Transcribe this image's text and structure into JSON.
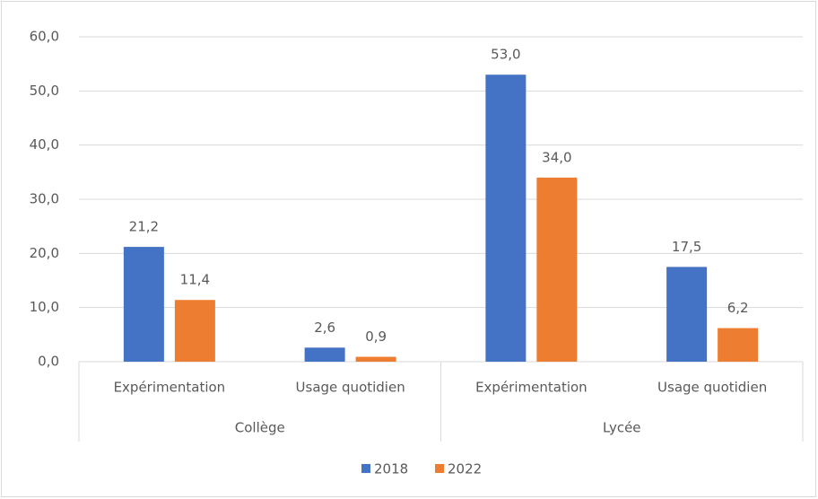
{
  "chart_data": {
    "type": "bar",
    "groups": [
      {
        "name": "Collège",
        "categories": [
          "Expérimentation",
          "Usage quotidien"
        ]
      },
      {
        "name": "Lycée",
        "categories": [
          "Expérimentation",
          "Usage quotidien"
        ]
      }
    ],
    "series": [
      {
        "name": "2018",
        "color": "#4472c4",
        "values": [
          21.2,
          2.6,
          53.0,
          17.5
        ],
        "value_labels": [
          "21,2",
          "2,6",
          "53,0",
          "17,5"
        ]
      },
      {
        "name": "2022",
        "color": "#ed7d31",
        "values": [
          11.4,
          0.9,
          34.0,
          6.2
        ],
        "value_labels": [
          "11,4",
          "0,9",
          "34,0",
          "6,2"
        ]
      }
    ],
    "ylim": [
      0,
      60
    ],
    "yticks": [
      {
        "value": 0,
        "label": "0,0"
      },
      {
        "value": 10,
        "label": "10,0"
      },
      {
        "value": 20,
        "label": "20,0"
      },
      {
        "value": 30,
        "label": "30,0"
      },
      {
        "value": 40,
        "label": "40,0"
      },
      {
        "value": 50,
        "label": "50,0"
      },
      {
        "value": 60,
        "label": "60,0"
      }
    ],
    "grid": true,
    "legend": "bottom"
  }
}
